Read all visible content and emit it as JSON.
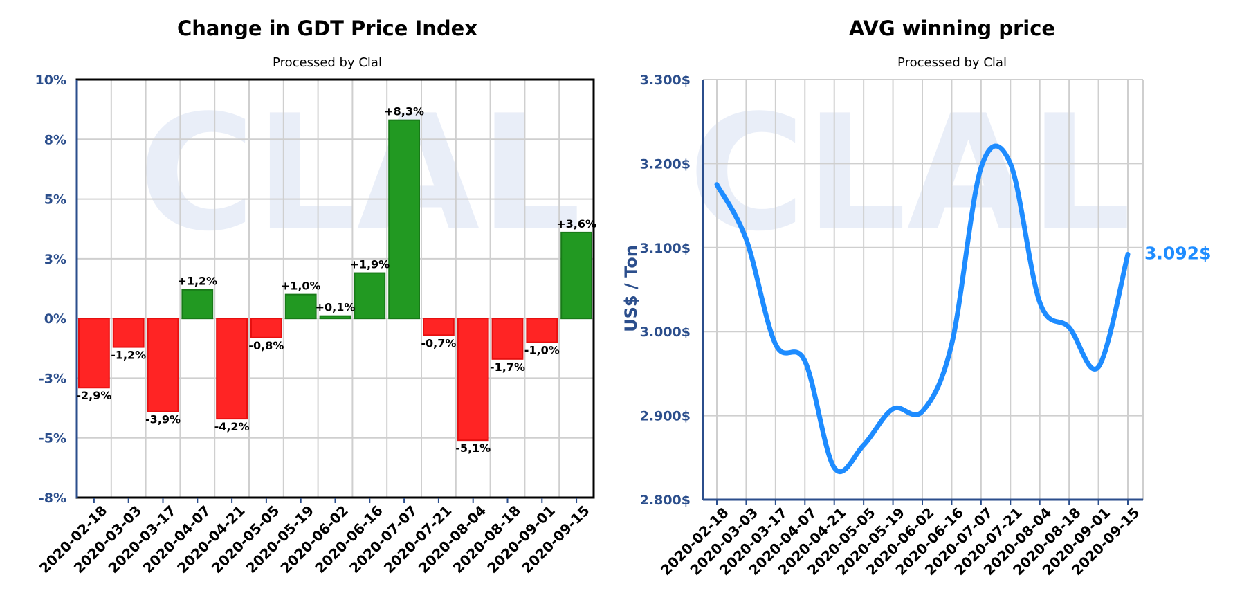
{
  "chart_data": [
    {
      "type": "bar",
      "title": "Change in GDT Price Index",
      "subtitle": "Processed by Clal",
      "watermark": "CLAL",
      "categories": [
        "2020-02-18",
        "2020-03-03",
        "2020-03-17",
        "2020-04-07",
        "2020-04-21",
        "2020-05-05",
        "2020-05-19",
        "2020-06-02",
        "2020-06-16",
        "2020-07-07",
        "2020-07-21",
        "2020-08-04",
        "2020-08-18",
        "2020-09-01",
        "2020-09-15"
      ],
      "values": [
        -2.9,
        -1.2,
        -3.9,
        1.2,
        -4.2,
        -0.8,
        1.0,
        0.1,
        1.9,
        8.3,
        -0.7,
        -5.1,
        -1.7,
        -1.0,
        3.6
      ],
      "data_labels": [
        "-2,9%",
        "-1,2%",
        "-3,9%",
        "+1,2%",
        "-4,2%",
        "-0,8%",
        "+1,0%",
        "+0,1%",
        "+1,9%",
        "+8,3%",
        "-0,7%",
        "-5,1%",
        "-1,7%",
        "-1,0%",
        "+3,6%"
      ],
      "ylim": [
        -7.5,
        10
      ],
      "yticks": [
        -7.5,
        -5,
        -2.5,
        0,
        2.5,
        5,
        7.5,
        10
      ],
      "ytick_labels": [
        "-8%",
        "-5%",
        "-3%",
        "0%",
        "3%",
        "5%",
        "8%",
        "10%"
      ],
      "positive_color": "#229922",
      "negative_color": "#ff2424",
      "grid": true,
      "legend": "none"
    },
    {
      "type": "line",
      "title": "AVG winning price",
      "subtitle": "Processed by Clal",
      "watermark": "CLAL",
      "ylabel": "US$ / Ton",
      "x": [
        "2020-02-18",
        "2020-03-03",
        "2020-03-17",
        "2020-04-07",
        "2020-04-21",
        "2020-05-05",
        "2020-05-19",
        "2020-06-02",
        "2020-06-16",
        "2020-07-07",
        "2020-07-21",
        "2020-08-04",
        "2020-08-18",
        "2020-09-01",
        "2020-09-15"
      ],
      "y": [
        3175,
        3110,
        2985,
        2965,
        2838,
        2865,
        2908,
        2905,
        2985,
        3195,
        3200,
        3035,
        3005,
        2958,
        3092
      ],
      "last_value_label": "3.092$",
      "ylim": [
        2800,
        3300
      ],
      "yticks": [
        2800,
        2900,
        3000,
        3100,
        3200,
        3300
      ],
      "ytick_labels": [
        "2.800$",
        "2.900$",
        "3.000$",
        "3.100$",
        "3.200$",
        "3.300$"
      ],
      "line_color": "#1e8cff",
      "grid": true,
      "legend": "none"
    }
  ]
}
